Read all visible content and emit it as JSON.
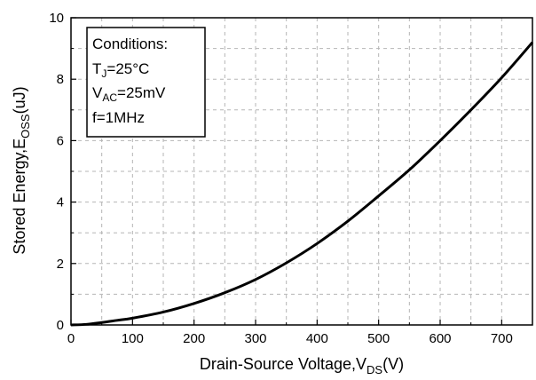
{
  "chart_data": {
    "type": "line",
    "xlabel_main": "Drain-Source Voltage,V",
    "xlabel_sub": "DS",
    "xlabel_tail": "(V)",
    "ylabel_main": "Stored Energy,E",
    "ylabel_sub": "OSS",
    "ylabel_tail": "(uJ)",
    "xlim": [
      0,
      750
    ],
    "ylim": [
      0,
      10
    ],
    "xticks": [
      0,
      100,
      200,
      300,
      400,
      500,
      600,
      700
    ],
    "yticks": [
      0,
      2,
      4,
      6,
      8,
      10
    ],
    "grid": true,
    "annotation": {
      "title": "Conditions:",
      "lines": [
        {
          "main": "T",
          "sub": "J",
          "tail": "=25°C"
        },
        {
          "main": "V",
          "sub": "AC",
          "tail": "=25mV"
        },
        {
          "main": "f=1MHz",
          "sub": "",
          "tail": ""
        }
      ]
    },
    "series": [
      {
        "color": "#000000",
        "x": [
          0,
          25,
          50,
          75,
          100,
          150,
          200,
          250,
          300,
          350,
          400,
          450,
          500,
          550,
          600,
          650,
          700,
          750
        ],
        "y": [
          0,
          0.02,
          0.08,
          0.15,
          0.22,
          0.42,
          0.7,
          1.05,
          1.48,
          2.02,
          2.65,
          3.38,
          4.2,
          5.05,
          6.0,
          7.0,
          8.05,
          9.2
        ]
      }
    ]
  }
}
